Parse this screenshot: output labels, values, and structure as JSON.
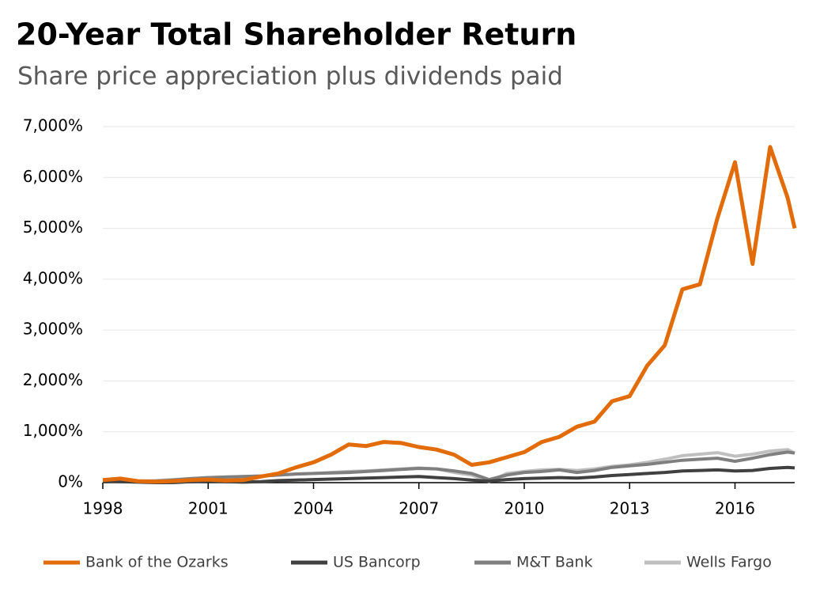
{
  "chart_data": {
    "type": "line",
    "title": "20-Year Total Shareholder Return",
    "subtitle": "Share price appreciation plus dividends paid",
    "x": [
      1998,
      1998.5,
      1999,
      1999.5,
      2000,
      2000.5,
      2001,
      2001.5,
      2002,
      2002.5,
      2003,
      2003.5,
      2004,
      2004.5,
      2005,
      2005.5,
      2006,
      2006.5,
      2007,
      2007.5,
      2008,
      2008.5,
      2009,
      2009.5,
      2010,
      2010.5,
      2011,
      2011.5,
      2012,
      2012.5,
      2013,
      2013.5,
      2014,
      2014.5,
      2015,
      2015.5,
      2016,
      2016.5,
      2017,
      2017.5,
      2017.7
    ],
    "series": [
      {
        "name": "Bank of the Ozarks",
        "color": "#e36c0a",
        "values": [
          50,
          80,
          30,
          20,
          30,
          50,
          60,
          40,
          50,
          120,
          180,
          300,
          400,
          550,
          750,
          720,
          800,
          780,
          700,
          650,
          550,
          350,
          400,
          500,
          600,
          800,
          900,
          1100,
          1200,
          1600,
          1700,
          2300,
          2700,
          3800,
          3900,
          5200,
          6300,
          4300,
          6600,
          5600,
          5000
        ]
      },
      {
        "name": "US Bancorp",
        "color": "#404040",
        "values": [
          30,
          20,
          10,
          0,
          0,
          20,
          30,
          20,
          10,
          20,
          40,
          50,
          60,
          70,
          80,
          90,
          100,
          110,
          120,
          100,
          80,
          50,
          30,
          60,
          80,
          90,
          100,
          90,
          110,
          140,
          160,
          180,
          200,
          230,
          240,
          250,
          230,
          240,
          280,
          300,
          290
        ]
      },
      {
        "name": "M&T Bank",
        "color": "#7f7f7f",
        "values": [
          30,
          40,
          20,
          30,
          50,
          80,
          100,
          110,
          120,
          130,
          150,
          170,
          180,
          190,
          200,
          220,
          240,
          260,
          280,
          270,
          230,
          180,
          60,
          150,
          200,
          220,
          250,
          200,
          240,
          300,
          330,
          360,
          400,
          440,
          460,
          480,
          420,
          480,
          550,
          600,
          580
        ]
      },
      {
        "name": "Wells Fargo",
        "color": "#bfbfbf",
        "values": [
          40,
          50,
          30,
          40,
          60,
          80,
          100,
          110,
          120,
          130,
          150,
          170,
          180,
          200,
          220,
          230,
          250,
          270,
          290,
          270,
          200,
          150,
          20,
          180,
          220,
          250,
          260,
          240,
          270,
          320,
          350,
          400,
          460,
          530,
          560,
          590,
          520,
          560,
          620,
          650,
          580
        ]
      }
    ],
    "xlim": [
      1998,
      2017.7
    ],
    "xticks": [
      1998,
      2001,
      2004,
      2007,
      2010,
      2013,
      2016
    ],
    "ylim": [
      0,
      7000
    ],
    "yticks": [
      {
        "value": 0,
        "label": "0%"
      },
      {
        "value": 1000,
        "label": "1,000%"
      },
      {
        "value": 2000,
        "label": "2,000%"
      },
      {
        "value": 3000,
        "label": "3,000%"
      },
      {
        "value": 4000,
        "label": "4,000%"
      },
      {
        "value": 5000,
        "label": "5,000%"
      },
      {
        "value": 6000,
        "label": "6,000%"
      },
      {
        "value": 7000,
        "label": "7,000%"
      }
    ],
    "grid": true,
    "legend": "bottom"
  }
}
